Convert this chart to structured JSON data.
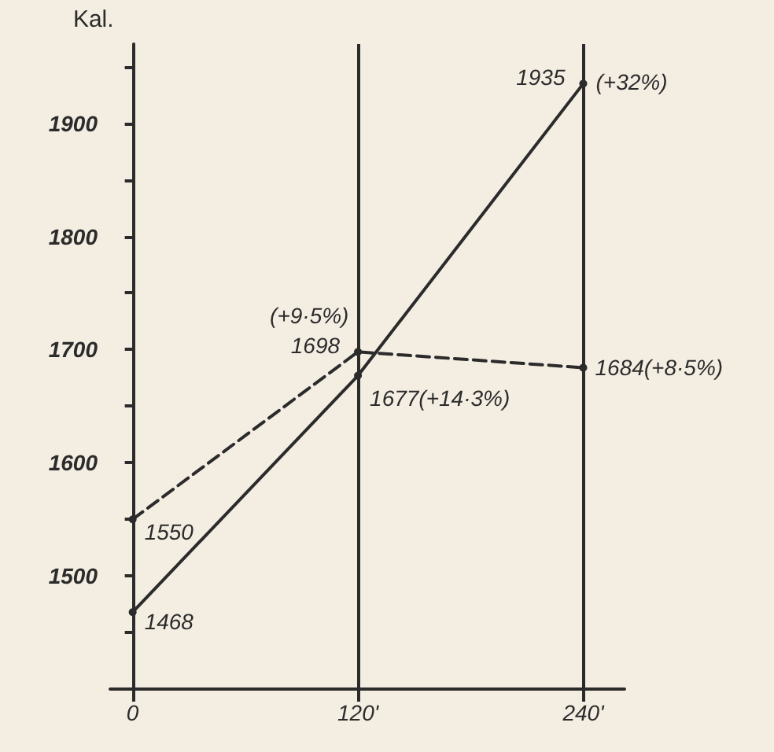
{
  "chart_data": {
    "type": "line",
    "ylabel": "Kal.",
    "x": [
      0,
      120,
      240
    ],
    "series": [
      {
        "color": "#2b2b2b",
        "values": [
          1468,
          1677,
          1935
        ],
        "line_style": "solid",
        "value_labels": [
          "1468",
          "1677(+14·3%)",
          "1935"
        ]
      },
      {
        "color": "#2b2b2b",
        "values": [
          1550,
          1698,
          1684
        ],
        "line_style": "dashed",
        "value_labels": [
          "1550",
          "1698",
          "1684(+8·5%)"
        ]
      }
    ],
    "annotations": [
      {
        "text": "(+32%)",
        "x": 240,
        "y": 1935
      },
      {
        "text": "(+9·5%)",
        "x": 120,
        "y": 1698
      }
    ],
    "xlim": [
      -12,
      262
    ],
    "xticks": [
      0,
      {
        "value": 120,
        "label": "120'"
      },
      {
        "value": 240,
        "label": "240'"
      }
    ],
    "ylim": [
      1400,
      1970
    ],
    "yticks": [
      {
        "value": 1450,
        "label": null
      },
      1500,
      {
        "value": 1550,
        "label": null
      },
      1600,
      {
        "value": 1650,
        "label": null
      },
      1700,
      {
        "value": 1750,
        "label": null
      },
      1800,
      {
        "value": 1850,
        "label": null
      },
      1900,
      {
        "value": 1950,
        "label": null
      }
    ],
    "marker": "circle",
    "grid": "x"
  }
}
